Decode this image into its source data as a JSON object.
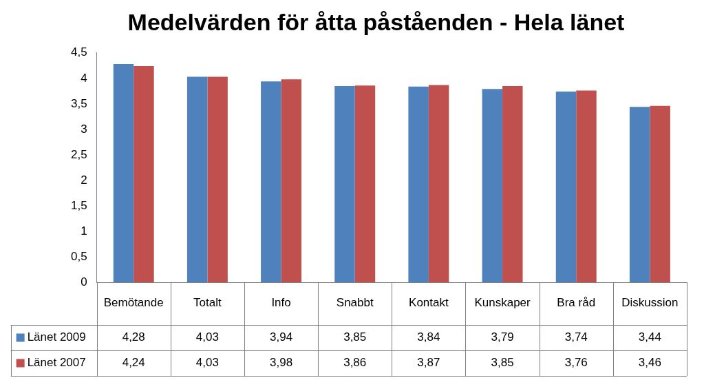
{
  "chart_data": {
    "type": "bar",
    "title": "Medelvärden för åtta påståenden - Hela länet",
    "categories": [
      "Bemötande",
      "Totalt",
      "Info",
      "Snabbt",
      "Kontakt",
      "Kunskaper",
      "Bra råd",
      "Diskussion"
    ],
    "series": [
      {
        "name": "Länet 2009",
        "color": "#4f81bd",
        "values": [
          4.28,
          4.03,
          3.94,
          3.85,
          3.84,
          3.79,
          3.74,
          3.44
        ],
        "value_labels": [
          "4,28",
          "4,03",
          "3,94",
          "3,85",
          "3,84",
          "3,79",
          "3,74",
          "3,44"
        ]
      },
      {
        "name": "Länet 2007",
        "color": "#c0504d",
        "values": [
          4.24,
          4.03,
          3.98,
          3.86,
          3.87,
          3.85,
          3.76,
          3.46
        ],
        "value_labels": [
          "4,24",
          "4,03",
          "3,98",
          "3,86",
          "3,87",
          "3,85",
          "3,76",
          "3,46"
        ]
      }
    ],
    "ylim": [
      0,
      4.5
    ],
    "yticks": [
      0,
      {
        "value": 0.5,
        "label": "0,5"
      },
      1,
      {
        "value": 1.5,
        "label": "1,5"
      },
      2,
      {
        "value": 2.5,
        "label": "2,5"
      },
      3,
      {
        "value": 3.5,
        "label": "3,5"
      },
      4,
      {
        "value": 4.5,
        "label": "4,5"
      }
    ],
    "grid": false,
    "legend": "bottom"
  }
}
